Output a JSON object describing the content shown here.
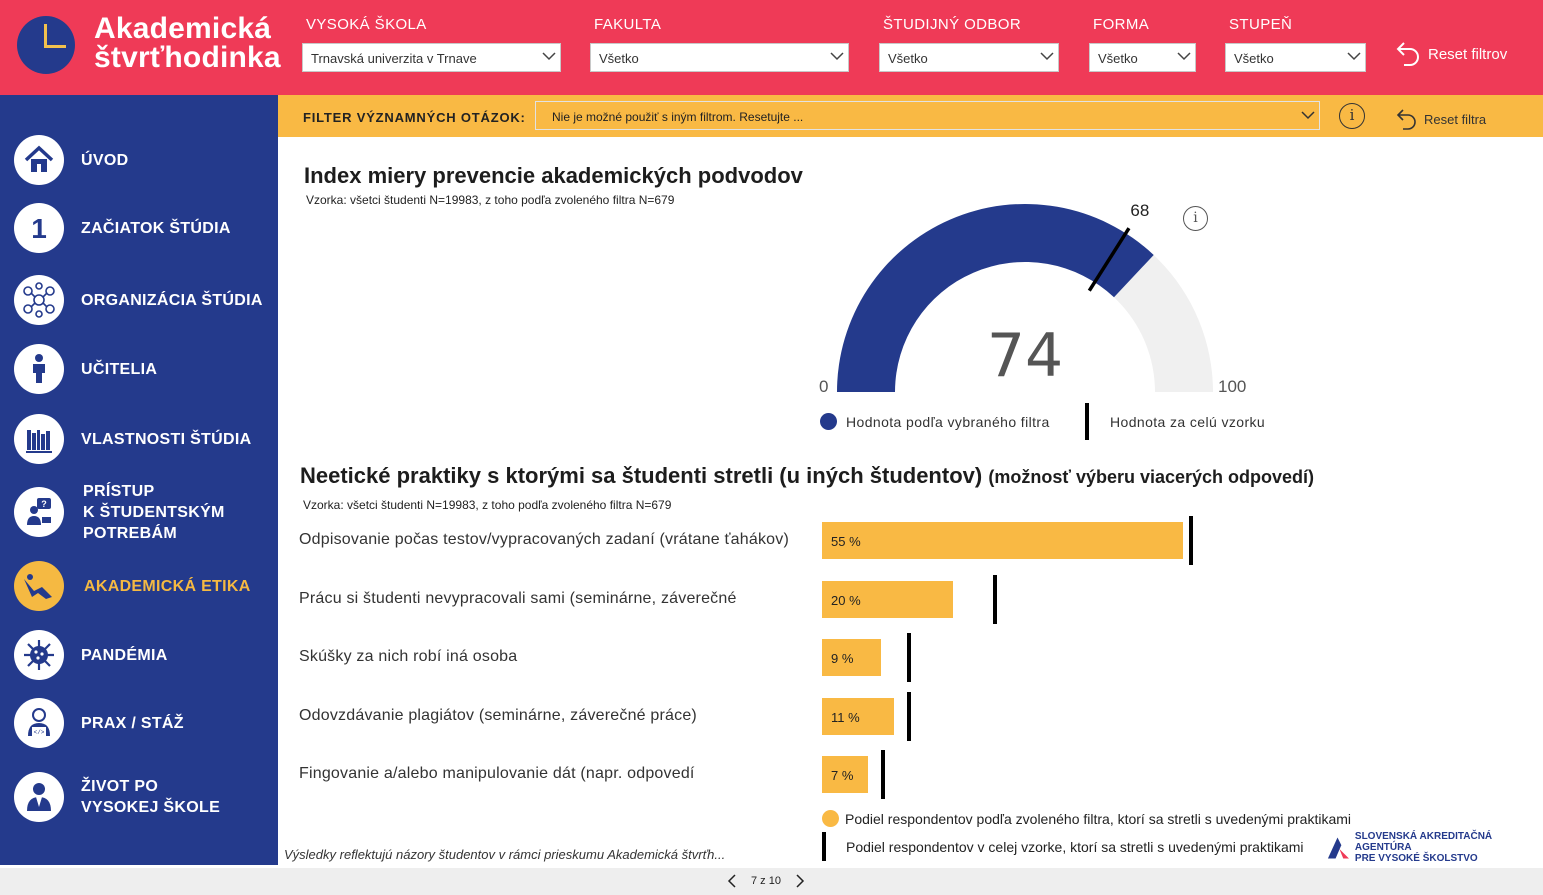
{
  "header": {
    "logo_line1": "Akademická",
    "logo_line2": "štvrťhodinka",
    "filters": [
      {
        "label": "VYSOKÁ ŠKOLA",
        "value": "Trnavská univerzita v Trnave"
      },
      {
        "label": "FAKULTA",
        "value": "Všetko"
      },
      {
        "label": "ŠTUDIJNÝ ODBOR",
        "value": "Všetko"
      },
      {
        "label": "FORMA",
        "value": "Všetko"
      },
      {
        "label": "STUPEŇ",
        "value": "Všetko"
      }
    ],
    "reset_label": "Reset filtrov"
  },
  "sidebar": {
    "items": [
      {
        "label": "ÚVOD",
        "icon": "home-icon",
        "active": false
      },
      {
        "label": "ZAČIATOK ŠTÚDIA",
        "icon": "number-one-icon",
        "active": false
      },
      {
        "label": "ORGANIZÁCIA ŠTÚDIA",
        "icon": "network-icon",
        "active": false
      },
      {
        "label": "UČITELIA",
        "icon": "teacher-icon",
        "active": false
      },
      {
        "label": "VLASTNOSTI ŠTÚDIA",
        "icon": "books-icon",
        "active": false
      },
      {
        "label_lines": [
          "PRÍSTUP",
          "K ŠTUDENTSKÝM",
          "POTREBÁM"
        ],
        "icon": "help-person-icon",
        "active": false
      },
      {
        "label": "AKADEMICKÁ ETIKA",
        "icon": "ethics-icon",
        "active": true
      },
      {
        "label": "PANDÉMIA",
        "icon": "virus-icon",
        "active": false
      },
      {
        "label": "PRAX / STÁŽ",
        "icon": "developer-icon",
        "active": false
      },
      {
        "label_lines": [
          "ŽIVOT PO",
          "VYSOKEJ ŠKOLE"
        ],
        "icon": "graduate-icon",
        "active": false
      }
    ]
  },
  "question_filter": {
    "label": "FILTER VÝZNAMNÝCH OTÁZOK:",
    "value": "Nie je možné použiť s iným filtrom. Resetujte ...",
    "info": "i",
    "reset_label": "Reset filtra"
  },
  "gauge_section": {
    "title": "Index miery prevencie akademických podvodov",
    "sample": "Vzorka: všetci študenti N=19983, z toho podľa zvoleného filtra N=679",
    "info": "i",
    "legend_filter": "Hodnota podľa vybraného filtra",
    "legend_total": "Hodnota za celú vzorku"
  },
  "bars_section": {
    "title": "Neetické praktiky s ktorými sa študenti stretli (u iných študentov)",
    "subtitle": "(možnosť výberu viacerých odpovedí)",
    "sample": "Vzorka: všetci študenti N=19983, z toho podľa zvoleného filtra N=679",
    "legend_filter": "Podiel respondentov podľa zvoleného filtra, ktorí sa stretli s uvedenými praktikami",
    "legend_total": "Podiel respondentov v celej vzorke, ktorí sa stretli s uvedenými praktikami"
  },
  "footnote": "Výsledky reflektujú názory študentov v rámci prieskumu Akademická štvrťh...",
  "agency": {
    "line1": "SLOVENSKÁ AKREDITAČNÁ AGENTÚRA",
    "line2": "PRE VYSOKÉ ŠKOLSTVO"
  },
  "pager": {
    "text": "7 z 10"
  },
  "colors": {
    "header_red": "#ef3a57",
    "navy": "#243a8c",
    "yellow": "#f9b944",
    "light_gray": "#f0f0f0"
  },
  "chart_data": [
    {
      "type": "gauge",
      "min": 0,
      "max": 100,
      "value": 74,
      "reference_value": 68,
      "min_label": "0",
      "max_label": "100",
      "value_label": "74",
      "reference_label": "68"
    },
    {
      "type": "bar",
      "orientation": "horizontal",
      "categories": [
        "Odpisovanie počas testov/vypracovaných zadaní (vrátane ťahákov)",
        "Prácu si študenti nevypracovali sami (seminárne, záverečné",
        "Skúšky za nich robí iná osoba",
        "Odovzdávanie plagiátov (seminárne, záverečné práce)",
        "Fingovanie a/alebo manipulovanie dát (napr. odpovedí"
      ],
      "series": [
        {
          "name": "Podiel respondentov podľa zvoleného filtra, ktorí sa stretli s uvedenými praktikami",
          "values": [
            55,
            20,
            9,
            11,
            7
          ]
        },
        {
          "name": "Podiel respondentov v celej vzorke, ktorí sa stretli s uvedenými praktikami",
          "values": [
            56,
            26,
            13,
            13,
            9
          ]
        }
      ],
      "data_labels": [
        "55 %",
        "20 %",
        "9 %",
        "11 %",
        "7 %"
      ],
      "xlim": [
        0,
        100
      ]
    }
  ]
}
